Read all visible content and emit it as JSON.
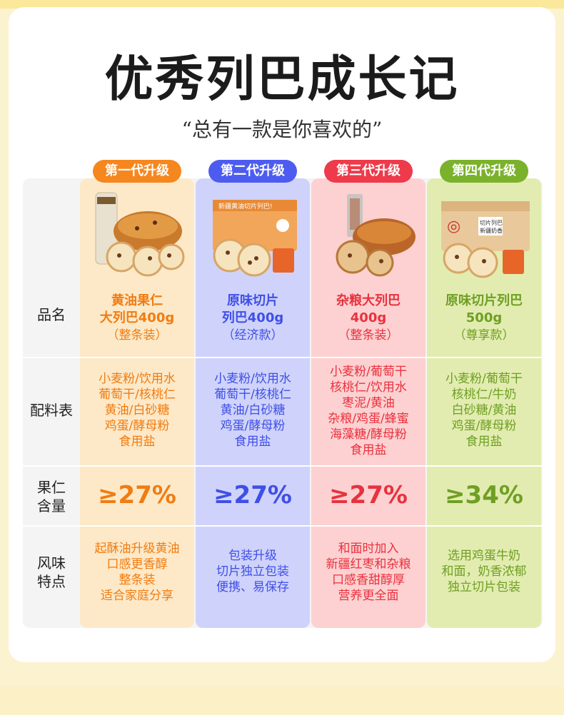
{
  "title": "优秀列巴成长记",
  "subtitle": "“总有一款是你喜欢的”",
  "row_labels": {
    "name": "品名",
    "ingredients": "配料表",
    "nut": [
      "果仁",
      "含量"
    ],
    "flavor": [
      "风味",
      "特点"
    ]
  },
  "packaging_text": {
    "box2": "新疆黄油切片列巴!",
    "box4_wrapper": "切片列巴",
    "box4_wrapper_sub": "新疆奶香"
  },
  "columns": [
    {
      "badge": "第一代升级",
      "name": [
        "黄油果仁",
        "大列巴400g"
      ],
      "name_sub": "（整条装）",
      "ingredients": [
        "小麦粉/饮用水",
        "葡萄干/核桃仁",
        "黄油/白砂糖",
        "鸡蛋/酵母粉",
        "食用盐"
      ],
      "nut": "≥27%",
      "flavor": [
        "起酥油升级黄油",
        "口感更香醇",
        "整条装",
        "适合家庭分享"
      ],
      "color": "#f6871f"
    },
    {
      "badge": "第二代升级",
      "name": [
        "原味切片",
        "列巴400g"
      ],
      "name_sub": "（经济款）",
      "ingredients": [
        "小麦粉/饮用水",
        "葡萄干/核桃仁",
        "黄油/白砂糖",
        "鸡蛋/酵母粉",
        "食用盐"
      ],
      "nut": "≥27%",
      "flavor": [
        "包装升级",
        "切片独立包装",
        "便携、易保存"
      ],
      "color": "#4d5cf0"
    },
    {
      "badge": "第三代升级",
      "name": [
        "杂粮大列巴",
        "400g"
      ],
      "name_sub": "（整条装）",
      "ingredients": [
        "小麦粉/葡萄干",
        "核桃仁/饮用水",
        "枣泥/黄油",
        "杂粮/鸡蛋/蜂蜜",
        "海藻糖/酵母粉",
        "食用盐"
      ],
      "nut": "≥27%",
      "flavor": [
        "和面时加入",
        "新疆红枣和杂粮",
        "口感香甜醇厚",
        "营养更全面"
      ],
      "color": "#ee3a4a"
    },
    {
      "badge": "第四代升级",
      "name": [
        "原味切片列巴",
        "500g"
      ],
      "name_sub": "（尊享款）",
      "ingredients": [
        "小麦粉/葡萄干",
        "核桃仁/牛奶",
        "白砂糖/黄油",
        "鸡蛋/酵母粉",
        "食用盐"
      ],
      "nut": "≥34%",
      "flavor": [
        "选用鸡蛋牛奶",
        "和面，奶香浓郁",
        "独立切片包装"
      ],
      "color": "#7ab22b"
    }
  ]
}
